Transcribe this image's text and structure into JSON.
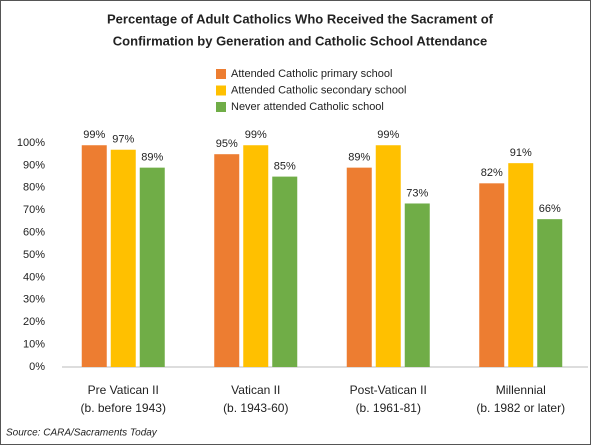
{
  "chart_data": {
    "type": "bar",
    "title": [
      "Percentage of Adult Catholics Who Received the Sacrament of",
      "Confirmation by Generation and Catholic School Attendance"
    ],
    "categories": [
      [
        "Pre Vatican II",
        "(b. before 1943)"
      ],
      [
        "Vatican II",
        "(b. 1943-60)"
      ],
      [
        "Post-Vatican II",
        "(b. 1961-81)"
      ],
      [
        "Millennial",
        "(b. 1982 or later)"
      ]
    ],
    "series": [
      {
        "name": "Attended Catholic primary school",
        "color": "#ed7d31",
        "values": [
          99,
          95,
          89,
          82
        ],
        "value_labels": [
          "99%",
          "95%",
          "89%",
          "82%"
        ]
      },
      {
        "name": "Attended Catholic secondary school",
        "color": "#ffc000",
        "values": [
          97,
          99,
          99,
          91
        ],
        "value_labels": [
          "97%",
          "99%",
          "99%",
          "91%"
        ]
      },
      {
        "name": "Never attended Catholic school",
        "color": "#70ad47",
        "values": [
          89,
          85,
          73,
          66
        ],
        "value_labels": [
          "89%",
          "85%",
          "73%",
          "66%"
        ]
      }
    ],
    "ylim": [
      0,
      100
    ],
    "yticks": [
      {
        "value": 0,
        "label": "0%"
      },
      {
        "value": 10,
        "label": "10%"
      },
      {
        "value": 20,
        "label": "20%"
      },
      {
        "value": 30,
        "label": "30%"
      },
      {
        "value": 40,
        "label": "40%"
      },
      {
        "value": 50,
        "label": "50%"
      },
      {
        "value": 60,
        "label": "60%"
      },
      {
        "value": 70,
        "label": "70%"
      },
      {
        "value": 80,
        "label": "80%"
      },
      {
        "value": 90,
        "label": "90%"
      },
      {
        "value": 100,
        "label": "100%"
      }
    ],
    "grid": false,
    "source": "Source: CARA/Sacraments Today"
  }
}
